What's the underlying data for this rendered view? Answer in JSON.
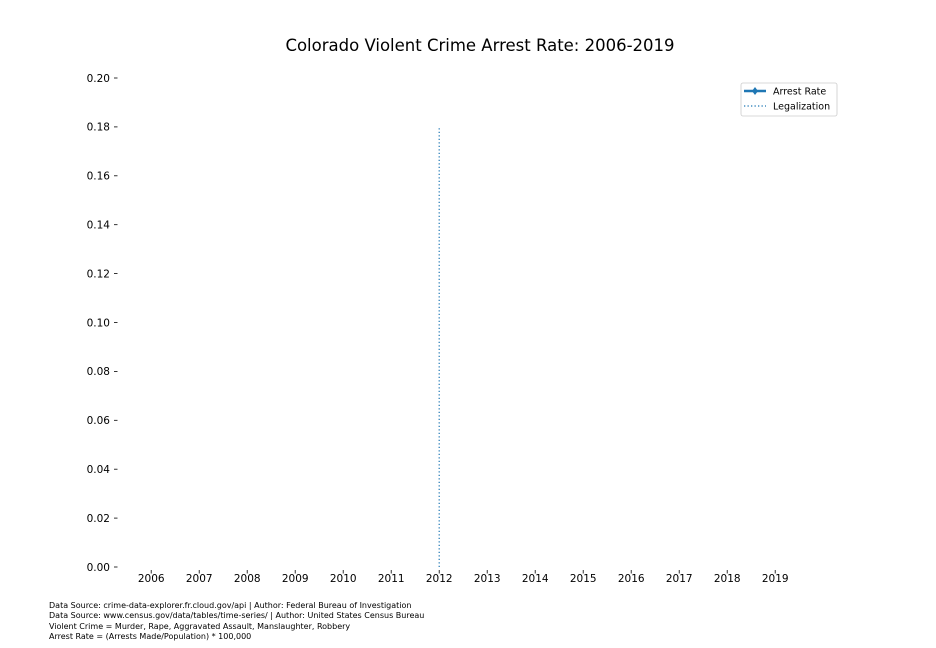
{
  "chart_data": {
    "type": "line",
    "title": "Colorado Violent Crime Arrest Rate: 2006-2019",
    "xlabel": "",
    "ylabel": "",
    "x_ticks": [
      "2006",
      "2007",
      "2008",
      "2009",
      "2010",
      "2011",
      "2012",
      "2013",
      "2014",
      "2015",
      "2016",
      "2017",
      "2018",
      "2019"
    ],
    "x_range": [
      2005.35,
      2020.35
    ],
    "y_ticks": [
      "0.00",
      "0.02",
      "0.04",
      "0.06",
      "0.08",
      "0.10",
      "0.12",
      "0.14",
      "0.16",
      "0.18",
      "0.20"
    ],
    "ylim": [
      0,
      0.2
    ],
    "series": [
      {
        "name": "Arrest Rate",
        "x": [],
        "values": [],
        "color": "#1f77b4",
        "style": "solid",
        "marker": "diamond"
      }
    ],
    "vlines": [
      {
        "name": "Legalization",
        "x": 2012,
        "ymin": 0,
        "ymax": 0.18,
        "color": "#1f77b4",
        "style": "dotted"
      }
    ],
    "legend": {
      "placement": "top-right",
      "entries": [
        "Arrest Rate",
        "Legalization"
      ]
    },
    "grid": false,
    "footnotes": [
      "Data Source: crime-data-explorer.fr.cloud.gov/api | Author: Federal Bureau of Investigation",
      "Data Source: www.census.gov/data/tables/time-series/ | Author: United States Census Bureau",
      "Violent Crime = Murder, Rape, Aggravated Assault, Manslaughter, Robbery",
      "Arrest Rate = (Arrests Made/Population) * 100,000"
    ]
  }
}
